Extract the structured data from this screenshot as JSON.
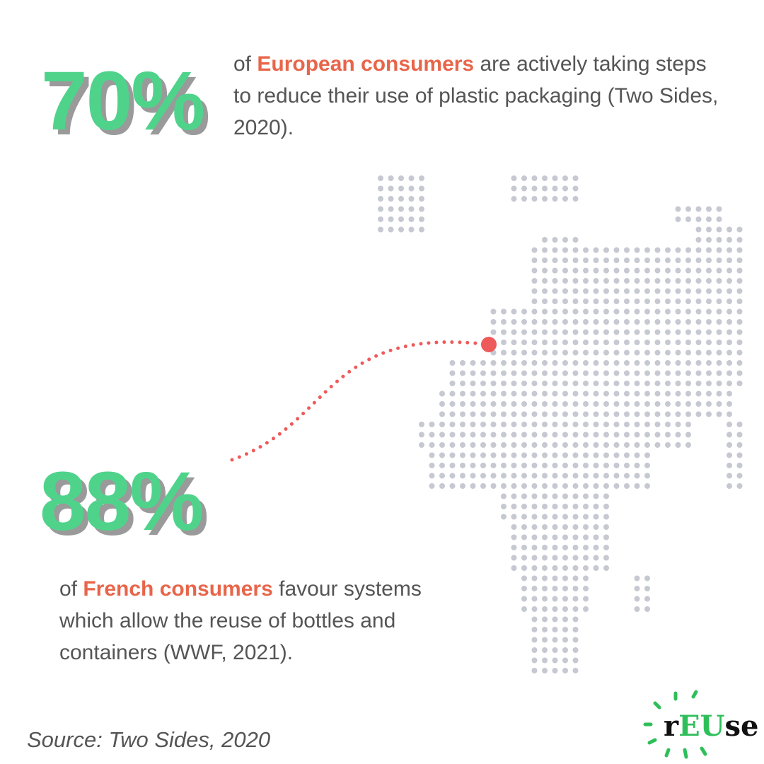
{
  "stats": [
    {
      "value": "70%",
      "lead": "of ",
      "highlight": "European consumers",
      "text": " are actively taking steps to reduce their use of plastic packaging (Two Sides, 2020)."
    },
    {
      "value": "88%",
      "lead": "of ",
      "highlight": "French consumers",
      "text": " favour systems which allow the reuse of bottles and containers (WWF, 2021)."
    }
  ],
  "source": "Source: Two Sides, 2020",
  "logo": {
    "prefix": "r",
    "highlight": "EU",
    "suffix": "se"
  }
}
